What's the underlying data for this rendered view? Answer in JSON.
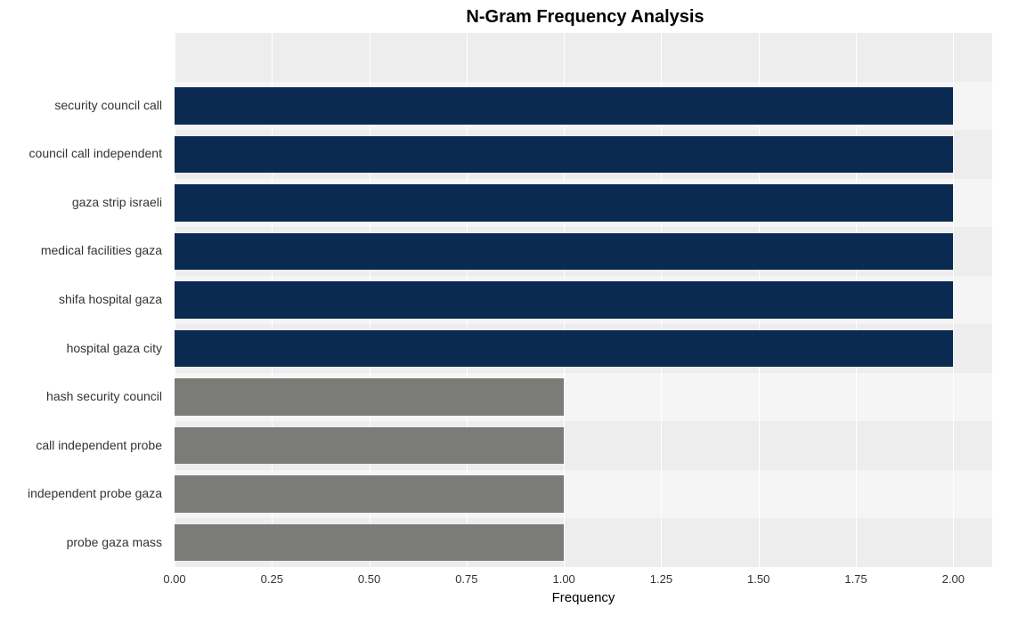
{
  "chart": {
    "type": "bar-horizontal",
    "title": "N-Gram Frequency Analysis",
    "title_fontsize": 20,
    "title_fontweight": "bold",
    "xlabel": "Frequency",
    "xlabel_fontsize": 15,
    "ylabel_fontsize": 14,
    "xtick_fontsize": 13,
    "background_color": "#ffffff",
    "band_colors": [
      "#ededed",
      "#f5f5f5"
    ],
    "gridline_color": "#ffffff",
    "xlim": [
      0,
      2.1
    ],
    "xticks": [
      0.0,
      0.25,
      0.5,
      0.75,
      1.0,
      1.25,
      1.5,
      1.75,
      2.0
    ],
    "xtick_labels": [
      "0.00",
      "0.25",
      "0.50",
      "0.75",
      "1.00",
      "1.25",
      "1.50",
      "1.75",
      "2.00"
    ],
    "bar_fill_ratio": 0.76,
    "series": [
      {
        "label": "",
        "value": 0,
        "color": "#ededed",
        "empty": true
      },
      {
        "label": "security council call",
        "value": 2.0,
        "color": "#0b2a52"
      },
      {
        "label": "council call independent",
        "value": 2.0,
        "color": "#0b2a52"
      },
      {
        "label": "gaza strip israeli",
        "value": 2.0,
        "color": "#0b2a52"
      },
      {
        "label": "medical facilities gaza",
        "value": 2.0,
        "color": "#0b2a52"
      },
      {
        "label": "shifa hospital gaza",
        "value": 2.0,
        "color": "#0b2a52"
      },
      {
        "label": "hospital gaza city",
        "value": 2.0,
        "color": "#0b2a52"
      },
      {
        "label": "hash security council",
        "value": 1.0,
        "color": "#7b7b77"
      },
      {
        "label": "call independent probe",
        "value": 1.0,
        "color": "#7b7b77"
      },
      {
        "label": "independent probe gaza",
        "value": 1.0,
        "color": "#7b7b77"
      },
      {
        "label": "probe gaza mass",
        "value": 1.0,
        "color": "#7b7b77"
      }
    ]
  }
}
